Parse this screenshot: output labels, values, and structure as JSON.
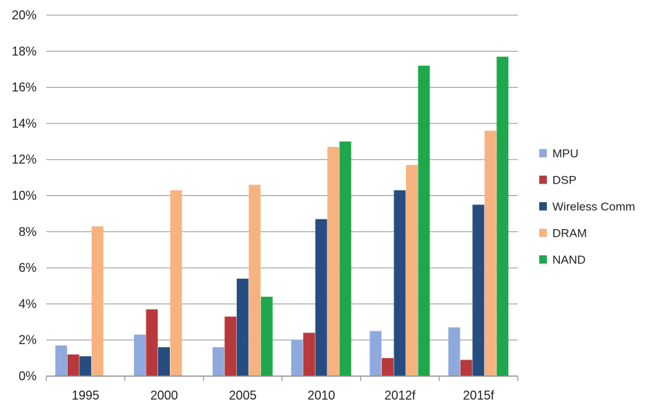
{
  "chart_data": {
    "type": "bar",
    "title": "",
    "xlabel": "",
    "ylabel": "",
    "categories": [
      "1995",
      "2000",
      "2005",
      "2010",
      "2012f",
      "2015f"
    ],
    "ylim": [
      0,
      20
    ],
    "y_ticks": [
      "0%",
      "2%",
      "4%",
      "6%",
      "8%",
      "10%",
      "12%",
      "14%",
      "16%",
      "18%",
      "20%"
    ],
    "grid": true,
    "legend_position": "right",
    "series": [
      {
        "name": "MPU",
        "color": "#8eaadc",
        "values": [
          1.7,
          2.3,
          1.6,
          2.0,
          2.5,
          2.7
        ]
      },
      {
        "name": "DSP",
        "color": "#b8393b",
        "values": [
          1.2,
          3.7,
          3.3,
          2.4,
          1.0,
          0.9
        ]
      },
      {
        "name": "Wireless Comm",
        "color": "#264d7f",
        "values": [
          1.1,
          1.6,
          5.4,
          8.7,
          10.3,
          9.5
        ]
      },
      {
        "name": "DRAM",
        "color": "#f6b380",
        "values": [
          8.3,
          10.3,
          10.6,
          12.7,
          11.7,
          13.6
        ]
      },
      {
        "name": "NAND",
        "color": "#1fa84b",
        "values": [
          null,
          null,
          4.4,
          13.0,
          17.2,
          17.7
        ]
      }
    ]
  }
}
